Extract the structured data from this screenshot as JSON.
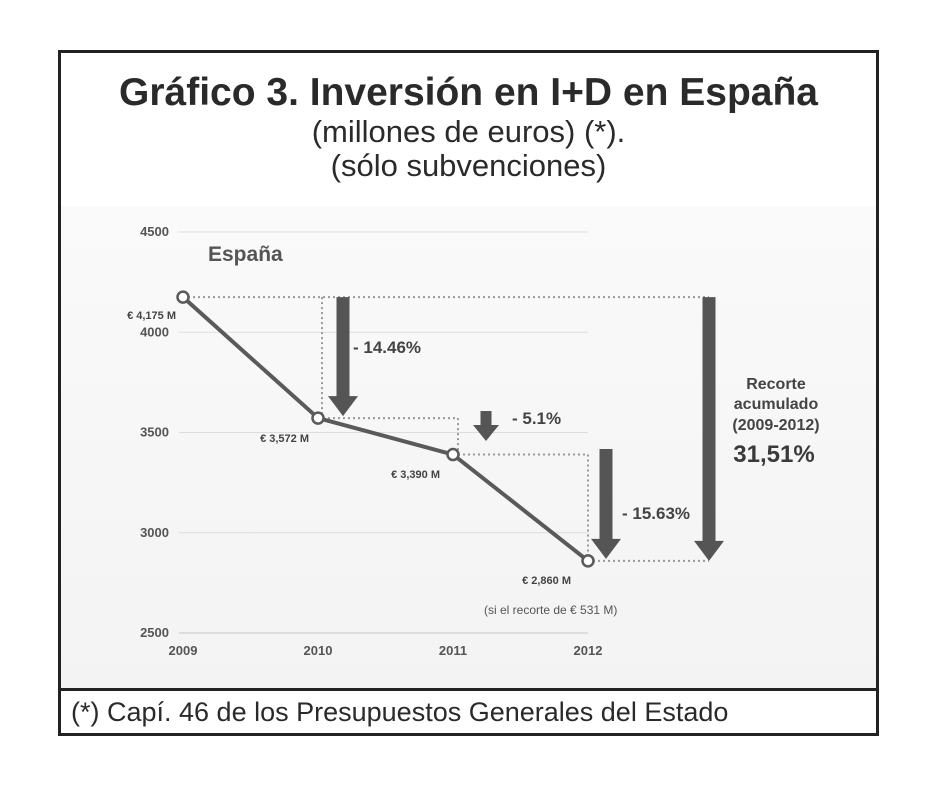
{
  "header": {
    "title": "Gráfico 3. Inversión en I+D en España",
    "subtitle_line1": "(millones de euros) (*).",
    "subtitle_line2": "(sólo subvenciones)"
  },
  "footer": {
    "note": "(*) Capí. 46 de los Presupuestos Generales del Estado"
  },
  "chart_data": {
    "type": "line",
    "title": "España",
    "x": [
      "2009",
      "2010",
      "2011",
      "2012"
    ],
    "series": [
      {
        "values": [
          4175,
          3572,
          3390,
          2860
        ],
        "labels": [
          "€ 4,175 M",
          "€ 3,572 M",
          "€ 3,390 M",
          "€ 2,860 M"
        ]
      }
    ],
    "ylim": [
      2500,
      4500
    ],
    "yticks": [
      2500,
      3000,
      3500,
      4000,
      4500
    ],
    "grid": true,
    "annotations": {
      "drops": [
        "- 14.46%",
        "- 5.1%",
        "- 15.63%"
      ],
      "note": "(si el  recorte de € 531 M)",
      "cumulative": [
        "Recorte",
        "acumulado",
        "(2009-2012)",
        "31,51%"
      ]
    },
    "colors": {
      "line": "#5a5a5a",
      "arrow": "#555555",
      "grid": "#dddddd",
      "dots": "#999999"
    }
  }
}
